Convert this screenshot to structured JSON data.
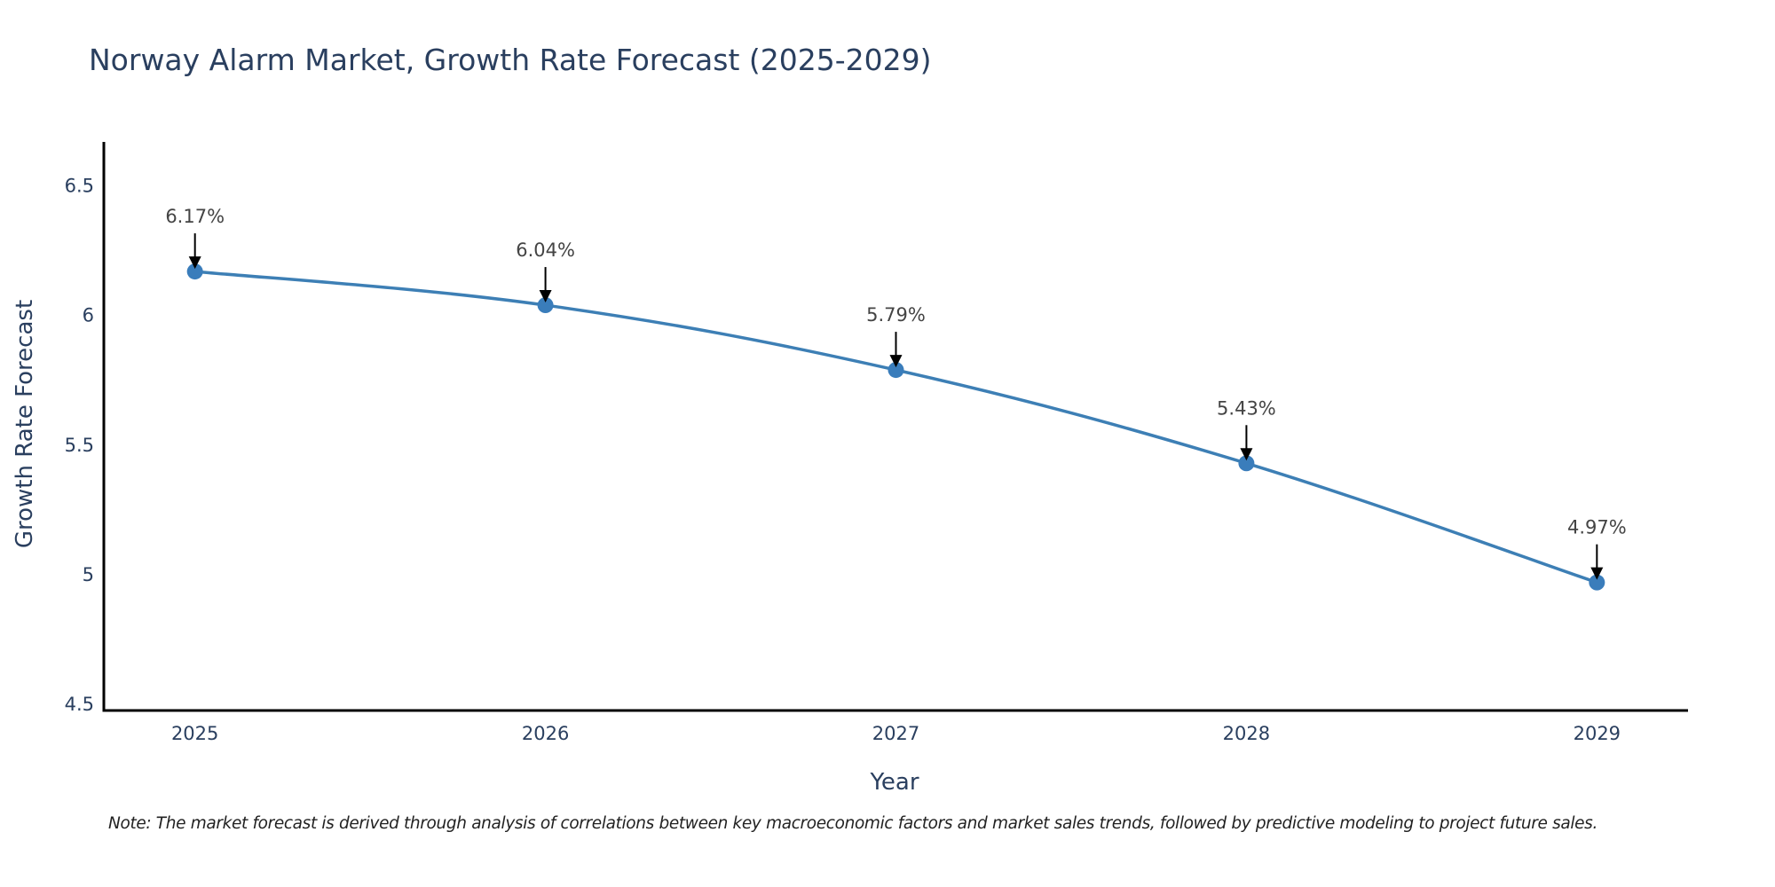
{
  "chart_data": {
    "type": "line",
    "title": "Norway Alarm Market, Growth Rate Forecast (2025-2029)",
    "xlabel": "Year",
    "ylabel": "Growth Rate Forecast",
    "x": [
      2025,
      2026,
      2027,
      2028,
      2029
    ],
    "x_tick_labels": [
      "2025",
      "2026",
      "2027",
      "2028",
      "2029"
    ],
    "series": [
      {
        "name": "Growth Rate Forecast",
        "values": [
          6.17,
          6.04,
          5.79,
          5.43,
          4.97
        ],
        "data_labels": [
          "6.17%",
          "6.04%",
          "5.79%",
          "5.43%",
          "4.97%"
        ],
        "color": "#3d7fb5",
        "marker_color": "#3a7dbb",
        "line_shape": "spline"
      }
    ],
    "y_ticks": [
      4.5,
      5,
      5.5,
      6,
      6.5
    ],
    "y_tick_labels": [
      "4.5",
      "5",
      "5.5",
      "6",
      "6.5"
    ],
    "xlim": [
      2024.74,
      2029.26
    ],
    "ylim": [
      4.476,
      6.67
    ],
    "grid": false,
    "legend": "none",
    "annotations": "arrow pointing to each data point with percent label above"
  },
  "note": "Note: The market forecast is derived through analysis of correlations between key macroeconomic factors and market sales trends, followed by predictive modeling to project future sales."
}
